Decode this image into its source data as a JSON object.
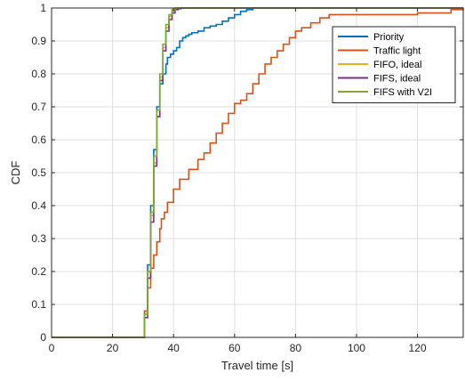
{
  "chart_data": {
    "type": "line",
    "title": "",
    "xlabel": "Travel time [s]",
    "ylabel": "CDF",
    "xlim": [
      0,
      135
    ],
    "ylim": [
      0,
      1
    ],
    "xticks": [
      0,
      20,
      40,
      60,
      80,
      100,
      120
    ],
    "yticks": [
      0,
      0.1,
      0.2,
      0.3,
      0.4,
      0.5,
      0.6,
      0.7,
      0.8,
      0.9,
      1
    ],
    "grid": true,
    "legend_position": "top-right",
    "series": [
      {
        "name": "Priority",
        "color": "#0072BD",
        "x": [
          0,
          29.5,
          30.5,
          31.5,
          32.5,
          33.5,
          34.5,
          35.5,
          36.5,
          37.5,
          38,
          39,
          40,
          41,
          42,
          43,
          44,
          45,
          46,
          48,
          50,
          52,
          54,
          56,
          58,
          60,
          62,
          64,
          66
        ],
        "y": [
          0,
          0,
          0.08,
          0.22,
          0.4,
          0.57,
          0.7,
          0.77,
          0.8,
          0.83,
          0.85,
          0.86,
          0.87,
          0.88,
          0.9,
          0.91,
          0.915,
          0.92,
          0.925,
          0.93,
          0.94,
          0.945,
          0.95,
          0.96,
          0.97,
          0.98,
          0.99,
          0.995,
          1
        ]
      },
      {
        "name": "Traffic light",
        "color": "#D95319",
        "x": [
          0,
          29.5,
          30.5,
          31.5,
          32.5,
          33.5,
          34.5,
          35.5,
          36,
          37,
          38,
          40,
          42,
          45,
          48,
          50,
          52,
          54,
          56,
          58,
          60,
          62,
          64,
          66,
          68,
          70,
          72,
          74,
          76,
          78,
          80,
          82,
          85,
          88,
          91,
          95,
          100,
          110,
          120,
          131,
          135
        ],
        "y": [
          0,
          0,
          0.08,
          0.15,
          0.21,
          0.25,
          0.29,
          0.33,
          0.36,
          0.38,
          0.41,
          0.45,
          0.48,
          0.51,
          0.54,
          0.56,
          0.59,
          0.62,
          0.65,
          0.68,
          0.71,
          0.72,
          0.74,
          0.77,
          0.8,
          0.83,
          0.85,
          0.87,
          0.89,
          0.91,
          0.93,
          0.94,
          0.955,
          0.97,
          0.98,
          0.98,
          0.98,
          0.98,
          0.985,
          0.995,
          1
        ]
      },
      {
        "name": "FIFO, ideal",
        "color": "#EDB120",
        "x": [
          0,
          29.5,
          30.5,
          31.5,
          32.5,
          33.5,
          34.5,
          35.5,
          36.5,
          37.5,
          38.5,
          39.5,
          40.5
        ],
        "y": [
          0,
          0,
          0.07,
          0.2,
          0.37,
          0.53,
          0.67,
          0.79,
          0.88,
          0.94,
          0.975,
          0.995,
          1
        ]
      },
      {
        "name": "FIFS, ideal",
        "color": "#7E2F8E",
        "x": [
          0,
          29.5,
          30.5,
          31.5,
          32.5,
          33.5,
          34.5,
          35.5,
          36.5,
          37.5,
          38.5,
          39.5,
          40.5,
          41.5,
          42.5
        ],
        "y": [
          0,
          0,
          0.06,
          0.18,
          0.35,
          0.52,
          0.67,
          0.78,
          0.87,
          0.93,
          0.965,
          0.985,
          0.995,
          0.998,
          1
        ]
      },
      {
        "name": "FIFS with V2I",
        "color": "#77AC30",
        "x": [
          0,
          29.5,
          30.5,
          31.5,
          32.5,
          33.5,
          34.5,
          35.5,
          36.5,
          37.5,
          38.5,
          39.5,
          40.5
        ],
        "y": [
          0,
          0,
          0.07,
          0.2,
          0.38,
          0.55,
          0.69,
          0.8,
          0.89,
          0.95,
          0.98,
          0.995,
          1
        ]
      }
    ]
  }
}
